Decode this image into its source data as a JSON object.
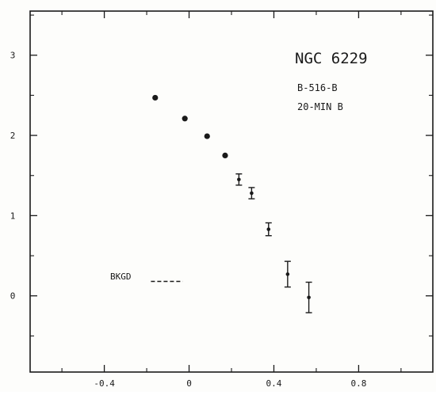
{
  "chart_data": {
    "type": "scatter",
    "annotations": {
      "title": "NGC 6229",
      "line1": "B-516-B",
      "line2": "20-MIN B",
      "background_label": "BKGD"
    },
    "xlim": [
      -0.75,
      1.15
    ],
    "ylim": [
      -0.95,
      3.55
    ],
    "x_ticks": [
      -0.4,
      0,
      0.4,
      0.8
    ],
    "x_tick_labels": [
      "-0.4",
      "0",
      "0.4",
      "0.8"
    ],
    "y_ticks": [
      0,
      1,
      2,
      3
    ],
    "y_tick_labels": [
      "0",
      "1",
      "2",
      "3"
    ],
    "grid": false,
    "points": [
      {
        "x": -0.16,
        "y": 2.47,
        "err": 0
      },
      {
        "x": -0.02,
        "y": 2.21,
        "err": 0
      },
      {
        "x": 0.085,
        "y": 1.99,
        "err": 0
      },
      {
        "x": 0.17,
        "y": 1.75,
        "err": 0
      },
      {
        "x": 0.235,
        "y": 1.45,
        "err": 0.07
      },
      {
        "x": 0.295,
        "y": 1.28,
        "err": 0.07
      },
      {
        "x": 0.375,
        "y": 0.83,
        "err": 0.08
      },
      {
        "x": 0.465,
        "y": 0.27,
        "err": 0.16
      },
      {
        "x": 0.565,
        "y": -0.02,
        "err": 0.19
      }
    ],
    "background_level": {
      "x_start": -0.18,
      "x_end": -0.03,
      "y": 0.18
    }
  },
  "colors": {
    "ink": "#1a1a1a",
    "paper": "#fdfdfb"
  }
}
